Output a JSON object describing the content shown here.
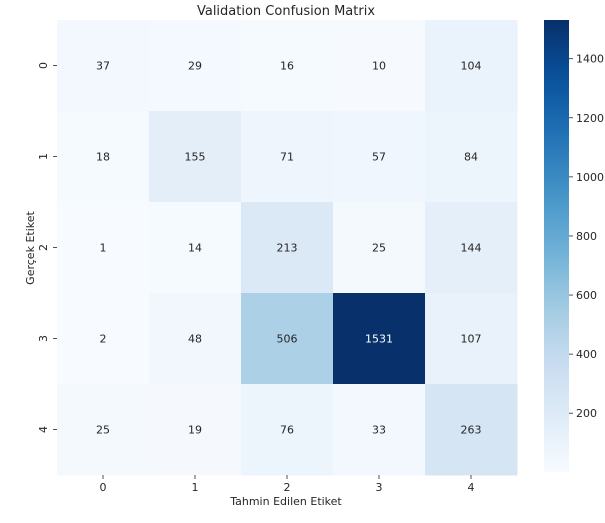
{
  "chart_data": {
    "type": "heatmap",
    "title": "Validation Confusion Matrix",
    "xlabel": "Tahmin Edilen Etiket",
    "ylabel": "Gerçek Etiket",
    "x_categories": [
      "0",
      "1",
      "2",
      "3",
      "4"
    ],
    "y_categories": [
      "0",
      "1",
      "2",
      "3",
      "4"
    ],
    "values": [
      [
        37,
        29,
        16,
        10,
        104
      ],
      [
        18,
        155,
        71,
        57,
        84
      ],
      [
        1,
        14,
        213,
        25,
        144
      ],
      [
        2,
        48,
        506,
        1531,
        107
      ],
      [
        25,
        19,
        76,
        33,
        263
      ]
    ],
    "colorbar": {
      "min": 1,
      "max": 1531,
      "ticks": [
        200,
        400,
        600,
        800,
        1000,
        1200,
        1400
      ],
      "colormap": "Blues",
      "low_color": "#f7fbff",
      "high_color": "#08306b"
    }
  }
}
